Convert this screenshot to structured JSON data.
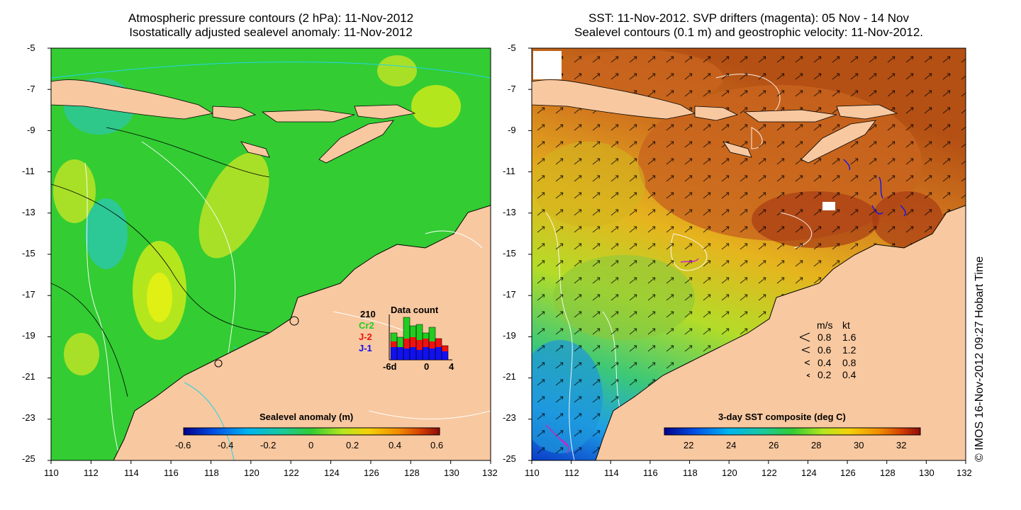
{
  "left_panel": {
    "title_line1": "Atmospheric pressure contours (2 hPa): 11-Nov-2012",
    "title_line2": "Isostatically adjusted sealevel anomaly: 11-Nov-2012",
    "colorbar": {
      "title": "Sealevel anomaly (m)",
      "ticks": [
        "-0.6",
        "-0.4",
        "-0.2",
        "0",
        "0.2",
        "0.4",
        "0.6"
      ]
    },
    "data_count": {
      "title": "Data count",
      "total": "210",
      "missions": [
        {
          "name": "Cr2",
          "color": "#22cc22"
        },
        {
          "name": "J-2",
          "color": "#ee1111"
        },
        {
          "name": "J-1",
          "color": "#1111ee"
        }
      ],
      "axis_labels": [
        "-6d",
        "0",
        "4"
      ]
    }
  },
  "right_panel": {
    "title_line1": "SST: 11-Nov-2012. SVP drifters (magenta): 05 Nov - 14 Nov",
    "title_line2": "Sealevel contours (0.1 m) and geostrophic velocity: 11-Nov-2012.",
    "colorbar": {
      "title": "3-day SST composite (deg C)",
      "ticks": [
        "22",
        "24",
        "26",
        "28",
        "30",
        "32"
      ]
    },
    "speed_legend": {
      "header_ms": "m/s",
      "header_kt": "kt",
      "rows": [
        {
          "ms": "0.8",
          "kt": "1.6"
        },
        {
          "ms": "0.6",
          "kt": "1.2"
        },
        {
          "ms": "0.4",
          "kt": "0.8"
        },
        {
          "ms": "0.2",
          "kt": "0.4"
        }
      ]
    }
  },
  "axes": {
    "y_ticks": [
      "-5",
      "-7",
      "-9",
      "-11",
      "-13",
      "-15",
      "-17",
      "-19",
      "-21",
      "-23",
      "-25"
    ],
    "x_ticks": [
      "110",
      "112",
      "114",
      "116",
      "118",
      "120",
      "122",
      "124",
      "126",
      "128",
      "130",
      "132"
    ]
  },
  "side_credit": "© IMOS 16-Nov-2012 09:27 Hobart Time",
  "colors": {
    "land": "#f8c8a0",
    "sla_background": "#33cc33",
    "sst_background": "#c86a1e"
  }
}
